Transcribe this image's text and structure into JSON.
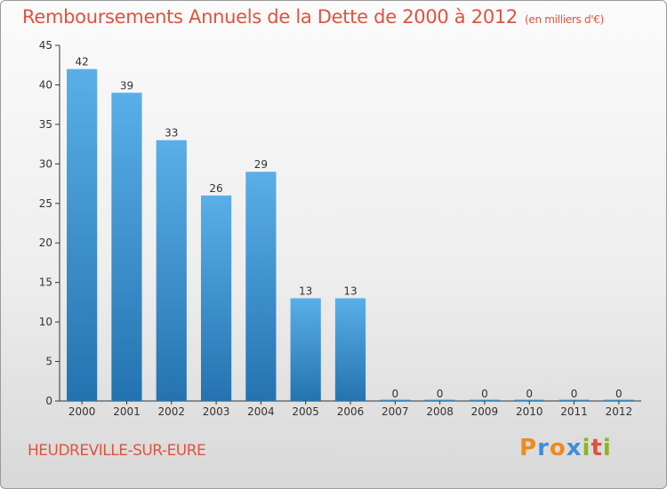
{
  "title": "Remboursements Annuels de la Dette de 2000 à 2012",
  "unit_note": "(en milliers d'€)",
  "commune": "HEUDREVILLE-SUR-EURE",
  "brand": {
    "name": "Proxiti",
    "letters": [
      "P",
      "r",
      "o",
      "x",
      "i",
      "t",
      "i"
    ],
    "letter_colors": [
      "#f08a1c",
      "#3f8fd6",
      "#f08a1c",
      "#3f8fd6",
      "#88b820",
      "#e0533d",
      "#88b820"
    ]
  },
  "colors": {
    "accent": "#e0533d",
    "bar_top": "#5aafe8",
    "bar_bottom": "#2473b0"
  },
  "chart_data": {
    "type": "bar",
    "categories": [
      "2000",
      "2001",
      "2002",
      "2003",
      "2004",
      "2005",
      "2006",
      "2007",
      "2008",
      "2009",
      "2010",
      "2011",
      "2012"
    ],
    "values": [
      42,
      39,
      33,
      26,
      29,
      13,
      13,
      0,
      0,
      0,
      0,
      0,
      0
    ],
    "title": "Remboursements Annuels de la Dette de 2000 à 2012",
    "subtitle": "(en milliers d'€)",
    "xlabel": "",
    "ylabel": "",
    "ylim": [
      0,
      45
    ],
    "yticks": [
      0,
      5,
      10,
      15,
      20,
      25,
      30,
      35,
      40,
      45
    ],
    "grid": false,
    "data_labels": true
  }
}
